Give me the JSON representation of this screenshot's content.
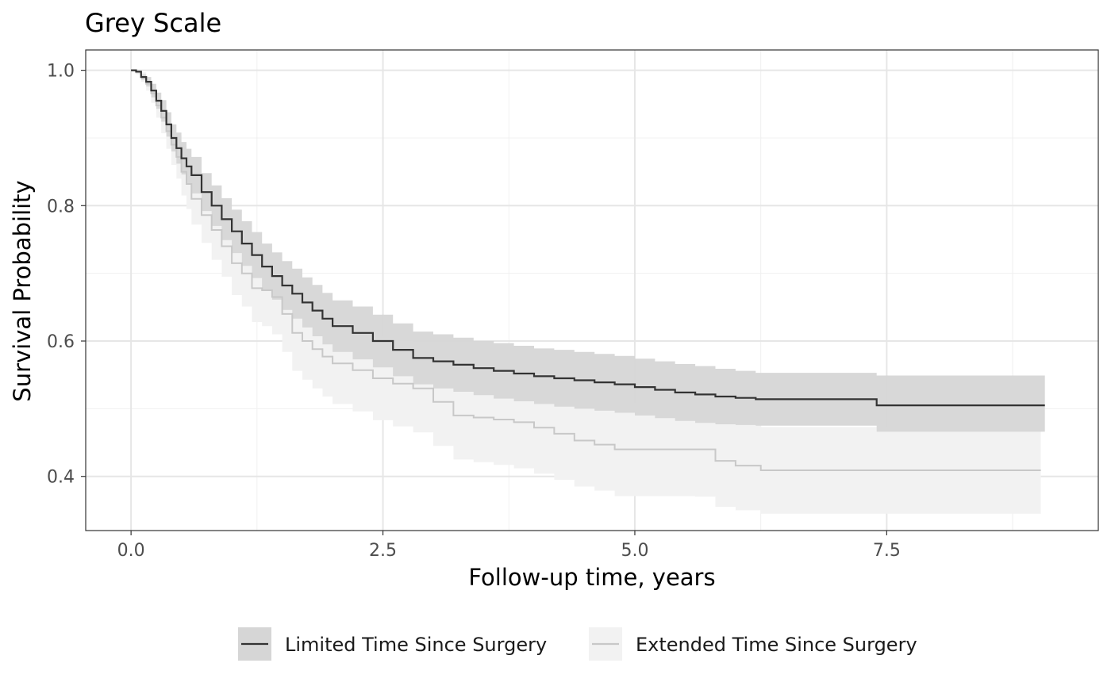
{
  "chart_data": {
    "type": "line",
    "title": "Grey Scale",
    "xlabel": "Follow-up time, years",
    "ylabel": "Survival Probability",
    "xlim": [
      -0.45,
      9.6
    ],
    "ylim": [
      0.32,
      1.03
    ],
    "x_ticks": [
      0,
      2.5,
      5,
      7.5
    ],
    "x_tick_labels": [
      "0.0",
      "2.5",
      "5.0",
      "7.5"
    ],
    "x_minor_ticks": [
      1.25,
      3.75,
      6.25,
      8.75
    ],
    "y_ticks": [
      0.4,
      0.6,
      0.8,
      1.0
    ],
    "y_tick_labels": [
      "0.4",
      "0.6",
      "0.8",
      "1.0"
    ],
    "y_minor_ticks": [
      0.5,
      0.7,
      0.9
    ],
    "grid": true,
    "step": true,
    "legend_position": "bottom",
    "series": [
      {
        "name": "Limited Time Since Surgery",
        "line_color": "#333333",
        "band_color": "#d6d6d6",
        "x": [
          0,
          0.05,
          0.1,
          0.15,
          0.2,
          0.25,
          0.3,
          0.35,
          0.4,
          0.45,
          0.5,
          0.55,
          0.6,
          0.7,
          0.8,
          0.9,
          1.0,
          1.1,
          1.2,
          1.3,
          1.4,
          1.5,
          1.6,
          1.7,
          1.8,
          1.9,
          2.0,
          2.2,
          2.4,
          2.6,
          2.8,
          3.0,
          3.2,
          3.4,
          3.6,
          3.8,
          4.0,
          4.2,
          4.4,
          4.6,
          4.8,
          5.0,
          5.2,
          5.4,
          5.6,
          5.8,
          6.0,
          6.2,
          6.5,
          6.8,
          7.1,
          7.4,
          7.6,
          8.0,
          8.5,
          9.07
        ],
        "y": [
          1.0,
          0.998,
          0.99,
          0.983,
          0.97,
          0.955,
          0.94,
          0.92,
          0.9,
          0.885,
          0.87,
          0.858,
          0.845,
          0.82,
          0.8,
          0.78,
          0.762,
          0.744,
          0.727,
          0.71,
          0.696,
          0.682,
          0.67,
          0.657,
          0.645,
          0.633,
          0.622,
          0.612,
          0.6,
          0.587,
          0.575,
          0.57,
          0.565,
          0.56,
          0.556,
          0.552,
          0.548,
          0.545,
          0.542,
          0.539,
          0.536,
          0.532,
          0.528,
          0.524,
          0.521,
          0.518,
          0.516,
          0.514,
          0.514,
          0.514,
          0.514,
          0.505,
          0.505,
          0.505,
          0.505,
          0.505
        ],
        "lower": [
          1.0,
          0.996,
          0.986,
          0.976,
          0.96,
          0.943,
          0.924,
          0.902,
          0.88,
          0.862,
          0.846,
          0.832,
          0.818,
          0.792,
          0.77,
          0.749,
          0.73,
          0.711,
          0.693,
          0.676,
          0.661,
          0.646,
          0.633,
          0.62,
          0.607,
          0.595,
          0.584,
          0.573,
          0.561,
          0.548,
          0.536,
          0.53,
          0.525,
          0.52,
          0.515,
          0.511,
          0.507,
          0.503,
          0.5,
          0.497,
          0.494,
          0.49,
          0.486,
          0.482,
          0.479,
          0.477,
          0.476,
          0.475,
          0.475,
          0.475,
          0.475,
          0.466,
          0.466,
          0.466,
          0.466,
          0.466
        ],
        "upper": [
          1.0,
          1.0,
          0.994,
          0.99,
          0.98,
          0.967,
          0.956,
          0.938,
          0.92,
          0.908,
          0.894,
          0.884,
          0.872,
          0.848,
          0.83,
          0.811,
          0.794,
          0.777,
          0.761,
          0.744,
          0.731,
          0.718,
          0.707,
          0.694,
          0.683,
          0.671,
          0.66,
          0.651,
          0.639,
          0.626,
          0.614,
          0.61,
          0.605,
          0.6,
          0.597,
          0.593,
          0.589,
          0.587,
          0.584,
          0.581,
          0.578,
          0.574,
          0.57,
          0.566,
          0.563,
          0.559,
          0.556,
          0.553,
          0.553,
          0.553,
          0.553,
          0.549,
          0.549,
          0.549,
          0.549,
          0.549
        ]
      },
      {
        "name": "Extended Time Since Surgery",
        "line_color": "#c8c8c8",
        "band_color": "#f2f2f2",
        "x": [
          0,
          0.05,
          0.1,
          0.15,
          0.2,
          0.25,
          0.3,
          0.35,
          0.4,
          0.45,
          0.5,
          0.55,
          0.6,
          0.7,
          0.8,
          0.9,
          1.0,
          1.1,
          1.2,
          1.3,
          1.4,
          1.5,
          1.6,
          1.7,
          1.8,
          1.9,
          2.0,
          2.2,
          2.4,
          2.6,
          2.8,
          3.0,
          3.2,
          3.4,
          3.6,
          3.8,
          4.0,
          4.2,
          4.4,
          4.6,
          4.8,
          5.0,
          5.2,
          5.4,
          5.6,
          5.8,
          6.0,
          6.25,
          6.5,
          7.0,
          7.5,
          8.0,
          8.5,
          9.03
        ],
        "y": [
          1.0,
          0.997,
          0.99,
          0.98,
          0.966,
          0.948,
          0.93,
          0.91,
          0.89,
          0.872,
          0.85,
          0.832,
          0.81,
          0.786,
          0.764,
          0.74,
          0.715,
          0.7,
          0.678,
          0.675,
          0.665,
          0.64,
          0.612,
          0.6,
          0.588,
          0.577,
          0.567,
          0.557,
          0.545,
          0.537,
          0.53,
          0.51,
          0.49,
          0.487,
          0.484,
          0.48,
          0.472,
          0.463,
          0.453,
          0.447,
          0.44,
          0.44,
          0.44,
          0.44,
          0.44,
          0.423,
          0.416,
          0.409,
          0.409,
          0.409,
          0.409,
          0.409,
          0.409,
          0.409
        ],
        "lower": [
          1.0,
          0.994,
          0.983,
          0.97,
          0.952,
          0.93,
          0.907,
          0.884,
          0.86,
          0.84,
          0.815,
          0.795,
          0.772,
          0.745,
          0.72,
          0.695,
          0.668,
          0.651,
          0.628,
          0.622,
          0.61,
          0.584,
          0.556,
          0.543,
          0.53,
          0.518,
          0.507,
          0.496,
          0.483,
          0.474,
          0.465,
          0.445,
          0.425,
          0.421,
          0.417,
          0.412,
          0.404,
          0.395,
          0.385,
          0.379,
          0.371,
          0.371,
          0.371,
          0.371,
          0.37,
          0.355,
          0.35,
          0.345,
          0.345,
          0.345,
          0.345,
          0.345,
          0.345,
          0.345
        ],
        "upper": [
          1.0,
          1.0,
          0.997,
          0.99,
          0.98,
          0.966,
          0.953,
          0.936,
          0.92,
          0.904,
          0.885,
          0.869,
          0.848,
          0.827,
          0.808,
          0.785,
          0.762,
          0.749,
          0.728,
          0.728,
          0.72,
          0.696,
          0.668,
          0.657,
          0.646,
          0.636,
          0.627,
          0.618,
          0.607,
          0.6,
          0.595,
          0.575,
          0.555,
          0.553,
          0.551,
          0.548,
          0.54,
          0.531,
          0.521,
          0.515,
          0.509,
          0.509,
          0.509,
          0.509,
          0.51,
          0.491,
          0.482,
          0.473,
          0.473,
          0.473,
          0.473,
          0.473,
          0.473,
          0.473
        ]
      }
    ]
  }
}
